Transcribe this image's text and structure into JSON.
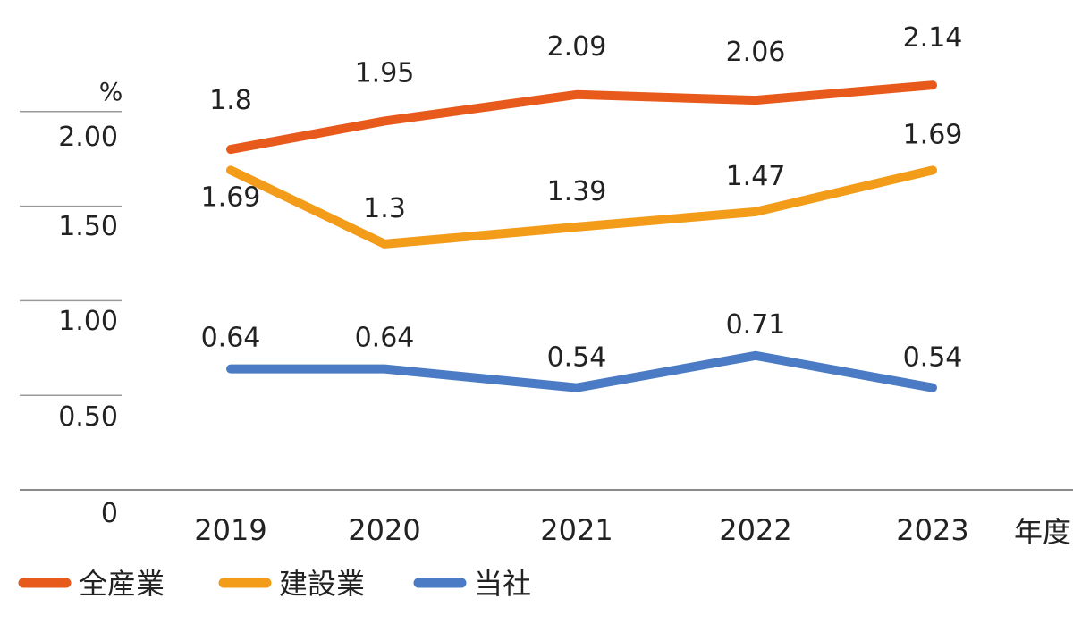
{
  "chart_data": {
    "type": "line",
    "unit_label": "%",
    "x_axis_suffix": "年度",
    "categories": [
      "2019",
      "2020",
      "2021",
      "2022",
      "2023"
    ],
    "y_ticks": [
      "0",
      "0.50",
      "1.00",
      "1.50",
      "2.00"
    ],
    "ylim": [
      0,
      2.25
    ],
    "grid": false,
    "legend_position": "bottom-left",
    "series": [
      {
        "name": "全産業",
        "color": "#e8591c",
        "values": [
          1.8,
          1.95,
          2.09,
          2.06,
          2.14
        ],
        "labels": [
          "1.8",
          "1.95",
          "2.09",
          "2.06",
          "2.14"
        ]
      },
      {
        "name": "建設業",
        "color": "#f39c1a",
        "values": [
          1.69,
          1.3,
          1.39,
          1.47,
          1.69
        ],
        "labels": [
          "1.69",
          "1.3",
          "1.39",
          "1.47",
          "1.69"
        ]
      },
      {
        "name": "当社",
        "color": "#4a7bc4",
        "values": [
          0.64,
          0.64,
          0.54,
          0.71,
          0.54
        ],
        "labels": [
          "0.64",
          "0.64",
          "0.54",
          "0.71",
          "0.54"
        ]
      }
    ]
  }
}
